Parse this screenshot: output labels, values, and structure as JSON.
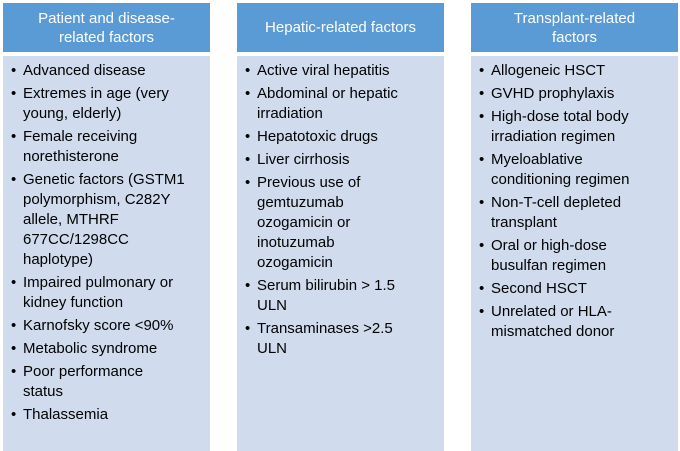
{
  "columns": [
    {
      "header": [
        "Patient and disease-",
        "related factors"
      ],
      "items": [
        [
          "Advanced disease"
        ],
        [
          "Extremes in age (very",
          "young, elderly)"
        ],
        [
          "Female receiving",
          "norethisterone"
        ],
        [
          "Genetic factors (GSTM1",
          "polymorphism, C282Y",
          "allele, MTHRF",
          "677CC/1298CC",
          "haplotype)"
        ],
        [
          "Impaired pulmonary or",
          "kidney function"
        ],
        [
          "Karnofsky score <90%"
        ],
        [
          "Metabolic syndrome"
        ],
        [
          "Poor performance",
          "status"
        ],
        [
          "Thalassemia"
        ]
      ]
    },
    {
      "header": [
        "Hepatic-related factors"
      ],
      "items": [
        [
          "Active viral hepatitis"
        ],
        [
          "Abdominal or hepatic",
          "irradiation"
        ],
        [
          "Hepatotoxic drugs"
        ],
        [
          "Liver cirrhosis"
        ],
        [
          "Previous use of",
          "gemtuzumab",
          "ozogamicin or",
          "inotuzumab",
          "ozogamicin"
        ],
        [
          "Serum bilirubin > 1.5",
          "ULN"
        ],
        [
          "Transaminases >2.5",
          "ULN"
        ]
      ]
    },
    {
      "header": [
        "Transplant-related",
        "factors"
      ],
      "items": [
        [
          "Allogeneic HSCT"
        ],
        [
          "GVHD prophylaxis"
        ],
        [
          "High-dose total body",
          "irradiation regimen"
        ],
        [
          "Myeloablative",
          "conditioning regimen"
        ],
        [
          "Non-T-cell depleted",
          "transplant"
        ],
        [
          "Oral or high-dose",
          "busulfan regimen"
        ],
        [
          "Second HSCT"
        ],
        [
          "Unrelated or HLA-",
          "mismatched donor"
        ]
      ]
    }
  ],
  "bullet_glyph": "•",
  "colors": {
    "header_bg": "#5b9bd5",
    "body_bg": "#d0dcee",
    "header_text": "#ffffff",
    "body_text": "#000000"
  }
}
